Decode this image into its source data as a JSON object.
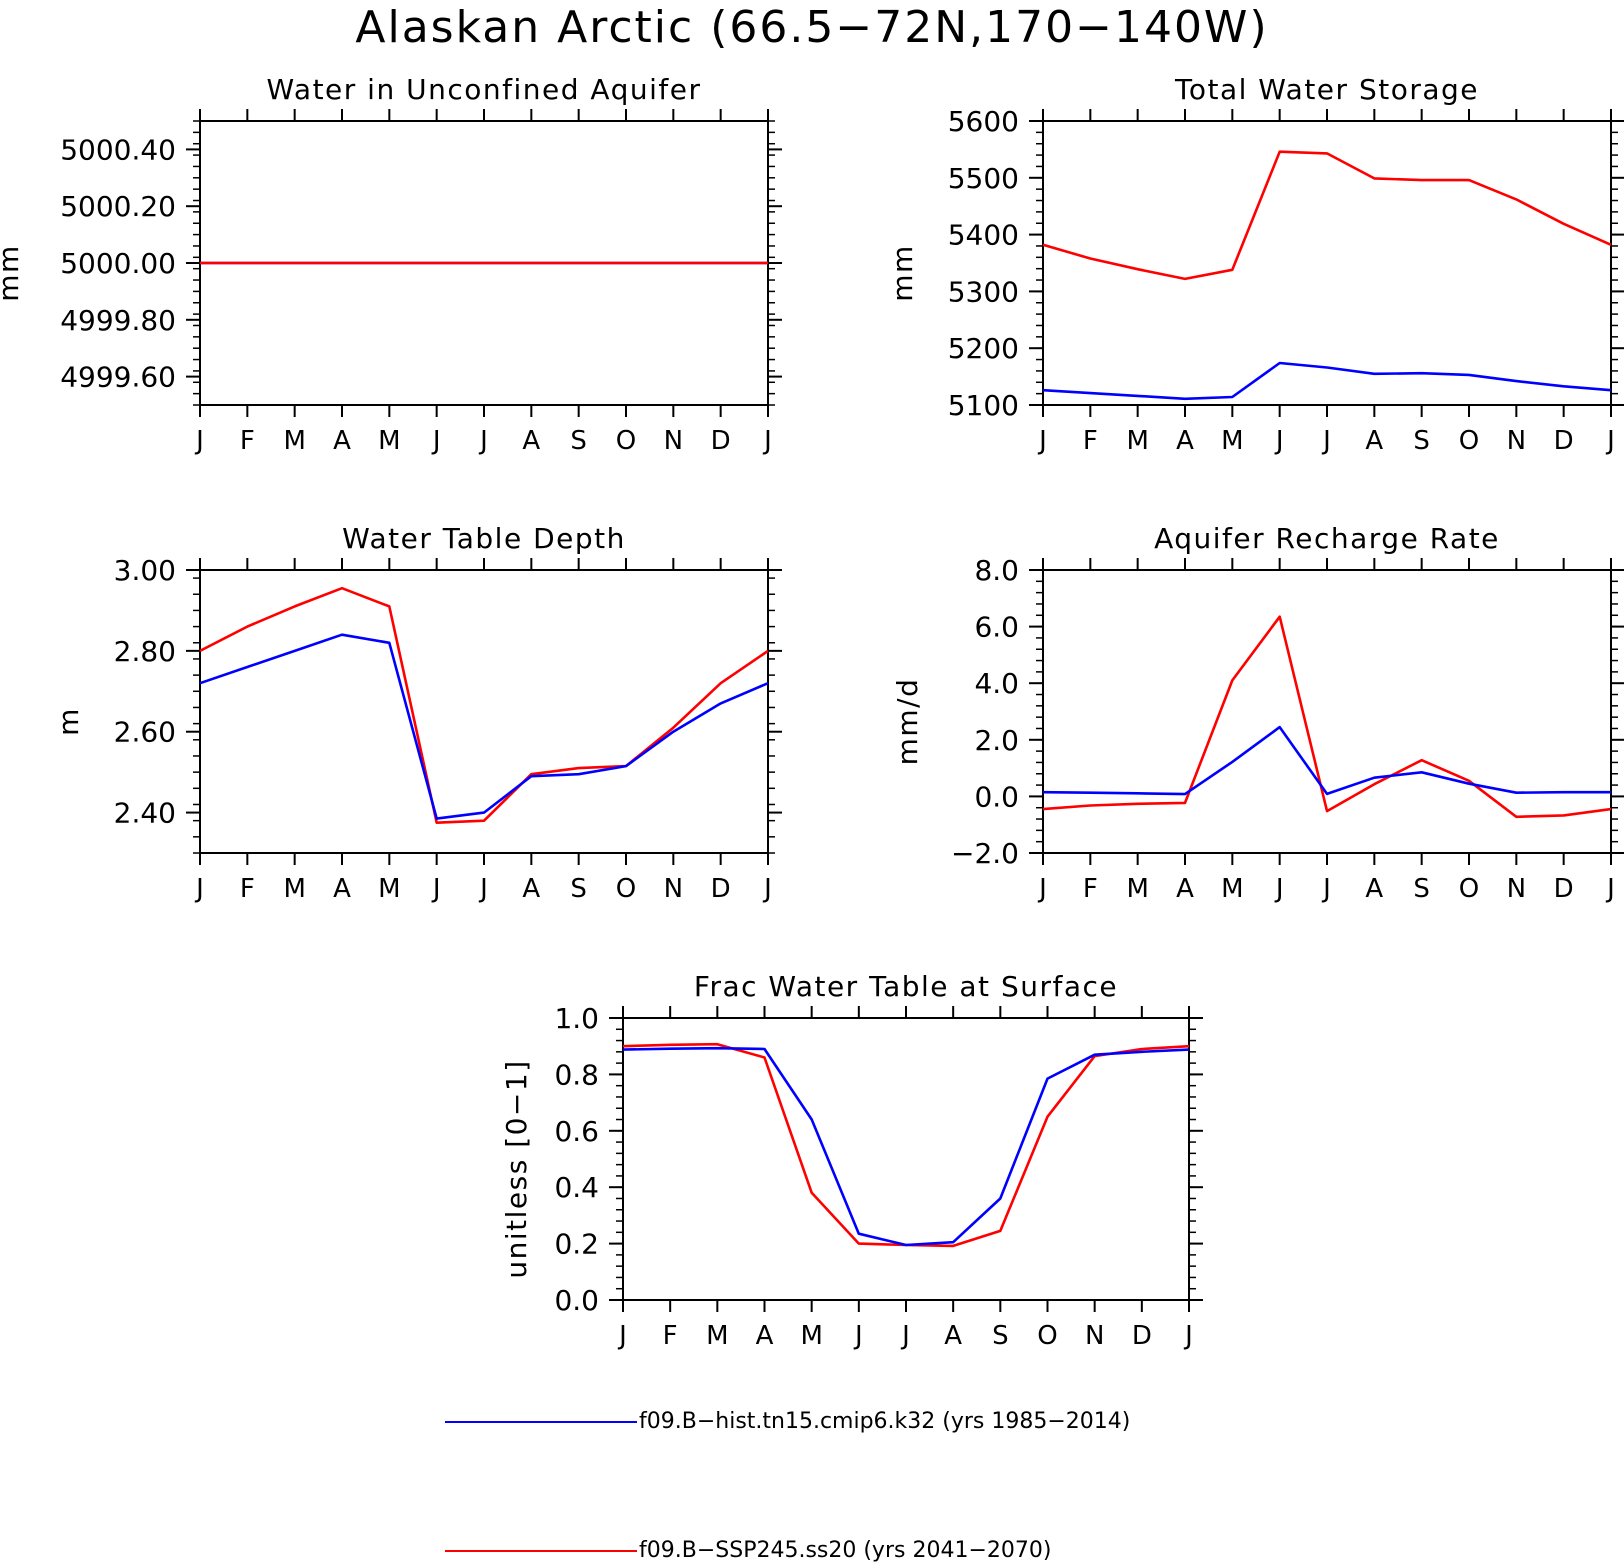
{
  "figure_title": "Alaskan Arctic (66.5−72N,170−140W)",
  "colors": {
    "hist": "#0000ff",
    "ssp": "#ff0000",
    "axis": "#000000"
  },
  "legend": [
    {
      "series": "hist",
      "label": "f09.B−hist.tn15.cmip6.k32 (yrs 1985−2014)"
    },
    {
      "series": "ssp",
      "label": "f09.B−SSP245.ss20 (yrs 2041−2070)"
    }
  ],
  "chart_data": [
    {
      "type": "line",
      "title": "Water in Unconfined Aquifer",
      "ylabel": "mm",
      "xlabel": "",
      "categories": [
        "J",
        "F",
        "M",
        "A",
        "M",
        "J",
        "J",
        "A",
        "S",
        "O",
        "N",
        "D",
        "J"
      ],
      "ylim": [
        4999.5,
        5000.5
      ],
      "yticks": [
        "5000.40",
        "5000.20",
        "5000.00",
        "4999.80",
        "4999.60"
      ],
      "ytick_values": [
        5000.4,
        5000.2,
        5000.0,
        4999.8,
        4999.6
      ],
      "series": [
        {
          "key": "hist",
          "values": [
            5000,
            5000,
            5000,
            5000,
            5000,
            5000,
            5000,
            5000,
            5000,
            5000,
            5000,
            5000,
            5000
          ]
        },
        {
          "key": "ssp",
          "values": [
            5000,
            5000,
            5000,
            5000,
            5000,
            5000,
            5000,
            5000,
            5000,
            5000,
            5000,
            5000,
            5000
          ]
        }
      ]
    },
    {
      "type": "line",
      "title": "Total Water Storage",
      "ylabel": "mm",
      "xlabel": "",
      "categories": [
        "J",
        "F",
        "M",
        "A",
        "M",
        "J",
        "J",
        "A",
        "S",
        "O",
        "N",
        "D",
        "J"
      ],
      "ylim": [
        5100,
        5600
      ],
      "yticks": [
        "5600",
        "5500",
        "5400",
        "5300",
        "5200",
        "5100"
      ],
      "ytick_values": [
        5600,
        5500,
        5400,
        5300,
        5200,
        5100
      ],
      "series": [
        {
          "key": "ssp",
          "values": [
            5382,
            5358,
            5339,
            5322,
            5338,
            5546,
            5543,
            5499,
            5496,
            5496,
            5462,
            5419,
            5382
          ]
        },
        {
          "key": "hist",
          "values": [
            5126,
            5121,
            5116,
            5111,
            5114,
            5174,
            5166,
            5155,
            5156,
            5153,
            5142,
            5133,
            5126
          ]
        }
      ]
    },
    {
      "type": "line",
      "title": "Water Table Depth",
      "ylabel": "m",
      "xlabel": "",
      "categories": [
        "J",
        "F",
        "M",
        "A",
        "M",
        "J",
        "J",
        "A",
        "S",
        "O",
        "N",
        "D",
        "J"
      ],
      "ylim": [
        2.3,
        3.0
      ],
      "yticks": [
        "3.00",
        "2.80",
        "2.60",
        "2.40"
      ],
      "ytick_values": [
        3.0,
        2.8,
        2.6,
        2.4
      ],
      "series": [
        {
          "key": "ssp",
          "values": [
            2.8,
            2.86,
            2.91,
            2.955,
            2.91,
            2.375,
            2.38,
            2.495,
            2.51,
            2.515,
            2.61,
            2.72,
            2.8
          ]
        },
        {
          "key": "hist",
          "values": [
            2.72,
            2.76,
            2.8,
            2.84,
            2.82,
            2.385,
            2.4,
            2.49,
            2.495,
            2.515,
            2.6,
            2.67,
            2.72
          ]
        }
      ]
    },
    {
      "type": "line",
      "title": "Aquifer Recharge Rate",
      "ylabel": "mm/d",
      "xlabel": "",
      "categories": [
        "J",
        "F",
        "M",
        "A",
        "M",
        "J",
        "J",
        "A",
        "S",
        "O",
        "N",
        "D",
        "J"
      ],
      "ylim": [
        -2.0,
        8.0
      ],
      "yticks": [
        "8.0",
        "6.0",
        "4.0",
        "2.0",
        "0.0",
        "−2.0"
      ],
      "ytick_values": [
        8.0,
        6.0,
        4.0,
        2.0,
        0.0,
        -2.0
      ],
      "series": [
        {
          "key": "ssp",
          "values": [
            -0.45,
            -0.32,
            -0.26,
            -0.23,
            4.1,
            6.35,
            -0.52,
            0.43,
            1.28,
            0.55,
            -0.72,
            -0.67,
            -0.45
          ]
        },
        {
          "key": "hist",
          "values": [
            0.15,
            0.13,
            0.11,
            0.08,
            1.22,
            2.45,
            0.09,
            0.66,
            0.85,
            0.45,
            0.13,
            0.15,
            0.15
          ]
        }
      ]
    },
    {
      "type": "line",
      "title": "Frac Water Table at Surface",
      "ylabel": "unitless [0−1]",
      "xlabel": "",
      "categories": [
        "J",
        "F",
        "M",
        "A",
        "M",
        "J",
        "J",
        "A",
        "S",
        "O",
        "N",
        "D",
        "J"
      ],
      "ylim": [
        0.0,
        1.0
      ],
      "yticks": [
        "1.0",
        "0.8",
        "0.6",
        "0.4",
        "0.2",
        "0.0"
      ],
      "ytick_values": [
        1.0,
        0.8,
        0.6,
        0.4,
        0.2,
        0.0
      ],
      "series": [
        {
          "key": "ssp",
          "values": [
            0.9,
            0.905,
            0.907,
            0.86,
            0.38,
            0.2,
            0.195,
            0.192,
            0.245,
            0.65,
            0.865,
            0.89,
            0.9
          ]
        },
        {
          "key": "hist",
          "values": [
            0.888,
            0.891,
            0.893,
            0.89,
            0.64,
            0.235,
            0.195,
            0.205,
            0.36,
            0.785,
            0.87,
            0.88,
            0.888
          ]
        }
      ]
    }
  ]
}
